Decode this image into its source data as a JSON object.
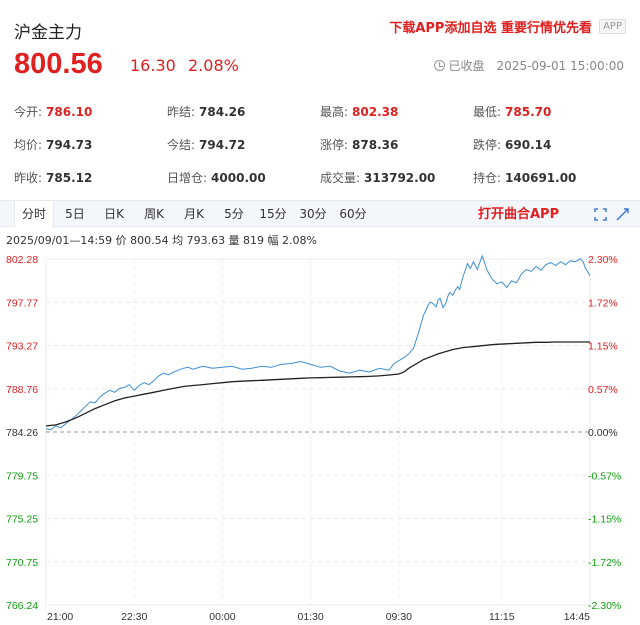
{
  "header": {
    "title": "沪金主力",
    "promo": "下载APP添加自选 重要行情优先看",
    "app_badge": "APP"
  },
  "quote": {
    "price": "800.56",
    "change": "16.30",
    "change_pct": "2.08%",
    "status": "已收盘",
    "datetime": "2025-09-01 15:00:00"
  },
  "stats": [
    [
      {
        "label": "今开:",
        "value": "786.10",
        "color": "red"
      },
      {
        "label": "昨结:",
        "value": "784.26"
      },
      {
        "label": "最高:",
        "value": "802.38",
        "color": "red"
      },
      {
        "label": "最低:",
        "value": "785.70",
        "color": "red"
      }
    ],
    [
      {
        "label": "均价:",
        "value": "794.73"
      },
      {
        "label": "今结:",
        "value": "794.72"
      },
      {
        "label": "涨停:",
        "value": "878.36"
      },
      {
        "label": "跌停:",
        "value": "690.14"
      }
    ],
    [
      {
        "label": "昨收:",
        "value": "785.12"
      },
      {
        "label": "日增仓:",
        "value": "4000.00"
      },
      {
        "label": "成交量:",
        "value": "313792.00"
      },
      {
        "label": "持仓:",
        "value": "140691.00"
      }
    ]
  ],
  "tabs": [
    "分时",
    "5日",
    "日K",
    "周K",
    "月K",
    "5分",
    "15分",
    "30分",
    "60分"
  ],
  "active_tab": "分时",
  "open_app_label": "打开曲合APP",
  "cursor_info": "2025/09/01—14:59  价 800.54  均 793.63  量 819  幅 2.08%",
  "colors": {
    "up": "#e02020",
    "down": "#10a010",
    "price_line": "#3d8fd6",
    "avg_line": "#222222"
  },
  "chart_data": {
    "type": "line",
    "ylim": [
      766.24,
      802.28
    ],
    "y_ticks": [
      "802.28",
      "797.77",
      "793.27",
      "788.76",
      "784.26",
      "779.75",
      "775.25",
      "770.75",
      "766.24"
    ],
    "pct_ticks": [
      "2.30%",
      "1.72%",
      "1.15%",
      "0.57%",
      "0.00%",
      "-0.57%",
      "-1.15%",
      "-1.72%",
      "-2.30%"
    ],
    "x_ticks": [
      "21:00",
      "22:30",
      "00:00",
      "01:30",
      "09:30",
      "11:15",
      "14:45"
    ],
    "x_tick_idx": [
      0,
      90,
      180,
      270,
      360,
      465,
      555
    ],
    "x_count": 555,
    "series": [
      {
        "x": [
          0,
          5,
          10,
          15,
          20,
          25,
          30,
          35,
          40,
          45,
          50,
          55,
          60,
          65,
          70,
          75,
          80,
          85,
          90,
          95,
          100,
          105,
          110,
          115,
          120,
          125,
          130,
          135,
          140,
          145,
          150,
          160,
          170,
          180,
          190,
          200,
          210,
          220,
          230,
          240,
          250,
          260,
          270,
          280,
          290,
          300,
          310,
          320,
          330,
          340,
          350,
          355,
          360,
          365,
          370,
          375,
          380,
          385,
          390,
          392,
          395,
          398,
          400,
          402,
          405,
          408,
          410,
          412,
          415,
          418,
          420,
          422,
          425,
          428,
          430,
          433,
          436,
          440,
          445,
          450,
          455,
          460,
          465,
          470,
          475,
          480,
          485,
          490,
          495,
          500,
          505,
          510,
          515,
          520,
          525,
          530,
          535,
          540,
          545,
          548,
          550,
          555
        ],
        "y": [
          784.6,
          784.5,
          784.9,
          784.7,
          785.1,
          785.5,
          785.9,
          786.4,
          786.9,
          787.4,
          787.3,
          787.9,
          788.3,
          788.6,
          788.4,
          788.8,
          788.9,
          789.2,
          788.6,
          789.1,
          789.4,
          789.2,
          789.6,
          790.1,
          790.4,
          790.2,
          790.5,
          790.7,
          790.9,
          791.0,
          790.8,
          791.1,
          790.9,
          791.0,
          791.1,
          790.8,
          790.9,
          791.1,
          791.0,
          791.3,
          791.4,
          791.6,
          791.3,
          791.0,
          791.1,
          790.6,
          790.4,
          790.7,
          790.5,
          790.9,
          790.7,
          791.4,
          791.7,
          792.0,
          792.4,
          793.0,
          794.6,
          796.4,
          797.5,
          797.8,
          797.6,
          797.3,
          798.0,
          798.2,
          797.2,
          797.7,
          798.4,
          798.8,
          798.5,
          799.1,
          799.4,
          799.1,
          800.3,
          801.2,
          801.8,
          801.3,
          802.0,
          801.2,
          802.6,
          801.1,
          800.2,
          799.7,
          799.9,
          799.3,
          800.0,
          799.8,
          800.7,
          801.2,
          801.0,
          801.5,
          801.1,
          801.7,
          801.9,
          801.6,
          802.0,
          801.7,
          802.1,
          802.0,
          802.3,
          802.0,
          801.4,
          800.54
        ]
      },
      {
        "x": [
          0,
          10,
          20,
          30,
          40,
          50,
          60,
          70,
          80,
          90,
          100,
          110,
          120,
          130,
          140,
          150,
          160,
          170,
          180,
          190,
          200,
          210,
          220,
          230,
          240,
          250,
          260,
          270,
          280,
          290,
          300,
          310,
          320,
          330,
          340,
          350,
          360,
          365,
          370,
          375,
          380,
          385,
          390,
          395,
          400,
          405,
          410,
          415,
          420,
          425,
          430,
          435,
          440,
          445,
          450,
          455,
          460,
          470,
          480,
          490,
          500,
          510,
          520,
          530,
          540,
          550,
          555
        ],
        "y": [
          784.9,
          785.0,
          785.3,
          785.7,
          786.2,
          786.7,
          787.1,
          787.5,
          787.8,
          788.0,
          788.2,
          788.4,
          788.6,
          788.8,
          789.0,
          789.1,
          789.2,
          789.3,
          789.4,
          789.5,
          789.55,
          789.6,
          789.65,
          789.7,
          789.75,
          789.8,
          789.85,
          789.9,
          789.92,
          789.95,
          789.97,
          790.0,
          790.02,
          790.05,
          790.1,
          790.2,
          790.3,
          790.5,
          790.9,
          791.2,
          791.5,
          791.8,
          792.0,
          792.2,
          792.4,
          792.55,
          792.7,
          792.85,
          792.95,
          793.05,
          793.1,
          793.15,
          793.2,
          793.25,
          793.3,
          793.35,
          793.4,
          793.45,
          793.5,
          793.55,
          793.6,
          793.6,
          793.63,
          793.63,
          793.63,
          793.63,
          793.63
        ]
      }
    ]
  }
}
